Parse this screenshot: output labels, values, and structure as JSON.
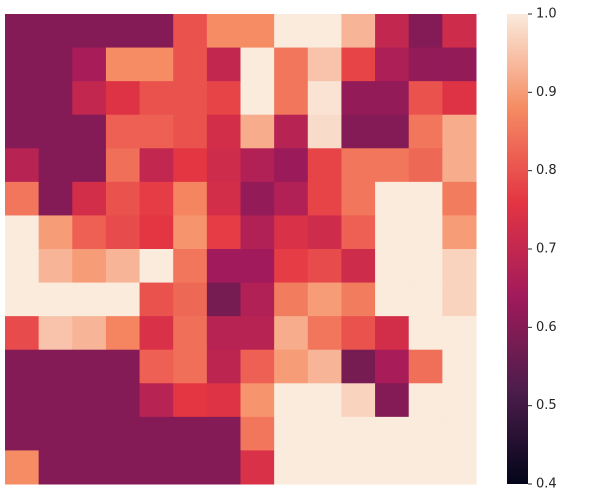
{
  "chart_data": {
    "type": "heatmap",
    "colormap": "rocket",
    "zlim": [
      0.4,
      1.0
    ],
    "colorbar_ticks": [
      0.4,
      0.5,
      0.6,
      0.7,
      0.8,
      0.9,
      {
        "value": 1.0,
        "label": "1.0"
      }
    ],
    "z": [
      [
        0.6,
        0.6,
        0.6,
        0.6,
        0.6,
        0.8,
        0.88,
        0.88,
        1.0,
        1.0,
        0.93,
        0.7,
        0.6,
        0.72
      ],
      [
        0.6,
        0.6,
        0.65,
        0.88,
        0.88,
        0.8,
        0.7,
        1.0,
        0.85,
        0.95,
        0.78,
        0.66,
        0.62,
        0.62
      ],
      [
        0.6,
        0.6,
        0.7,
        0.75,
        0.8,
        0.8,
        0.78,
        1.0,
        0.85,
        0.99,
        0.62,
        0.62,
        0.8,
        0.75
      ],
      [
        0.6,
        0.6,
        0.6,
        0.82,
        0.82,
        0.8,
        0.73,
        0.92,
        0.68,
        0.98,
        0.6,
        0.6,
        0.85,
        0.92
      ],
      [
        0.68,
        0.6,
        0.6,
        0.84,
        0.7,
        0.76,
        0.72,
        0.67,
        0.63,
        0.78,
        0.85,
        0.85,
        0.83,
        0.92
      ],
      [
        0.85,
        0.6,
        0.73,
        0.8,
        0.77,
        0.87,
        0.73,
        0.62,
        0.67,
        0.78,
        0.85,
        1.0,
        1.0,
        0.86
      ],
      [
        1.0,
        0.9,
        0.82,
        0.79,
        0.76,
        0.89,
        0.77,
        0.67,
        0.74,
        0.72,
        0.82,
        1.0,
        1.0,
        0.9
      ],
      [
        1.0,
        0.93,
        0.9,
        0.93,
        1.0,
        0.85,
        0.64,
        0.64,
        0.77,
        0.79,
        0.72,
        1.0,
        1.0,
        0.97
      ],
      [
        1.0,
        1.0,
        1.0,
        1.0,
        0.8,
        0.83,
        0.58,
        0.67,
        0.86,
        0.9,
        0.86,
        1.0,
        1.0,
        0.97
      ],
      [
        0.79,
        0.95,
        0.93,
        0.87,
        0.74,
        0.84,
        0.68,
        0.68,
        0.92,
        0.85,
        0.8,
        0.73,
        1.0,
        1.0
      ],
      [
        0.6,
        0.6,
        0.6,
        0.6,
        0.82,
        0.84,
        0.69,
        0.82,
        0.9,
        0.93,
        0.58,
        0.65,
        0.84,
        1.0
      ],
      [
        0.6,
        0.6,
        0.6,
        0.6,
        0.68,
        0.76,
        0.75,
        0.89,
        1.0,
        1.0,
        0.97,
        0.6,
        1.0,
        1.0
      ],
      [
        0.6,
        0.6,
        0.6,
        0.6,
        0.6,
        0.6,
        0.6,
        0.85,
        1.0,
        1.0,
        1.0,
        1.0,
        1.0,
        1.0
      ],
      [
        0.88,
        0.6,
        0.6,
        0.6,
        0.6,
        0.6,
        0.6,
        0.74,
        1.0,
        1.0,
        1.0,
        1.0,
        1.0,
        1.0
      ]
    ]
  }
}
